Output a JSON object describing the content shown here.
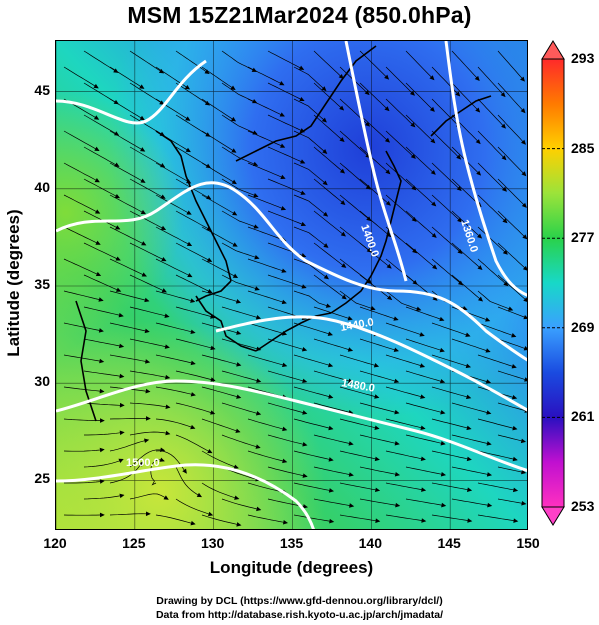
{
  "title": "MSM 15Z21Mar2024 (850.0hPa)",
  "chart_data": {
    "type": "map",
    "xlabel": "Longitude (degrees)",
    "ylabel": "Latitude  (degrees)",
    "xlim": [
      120,
      150
    ],
    "ylim": [
      22.4,
      47.6
    ],
    "xticks": [
      "120",
      "125",
      "130",
      "135",
      "140",
      "145",
      "150"
    ],
    "yticks": [
      "25",
      "30",
      "35",
      "40",
      "45"
    ],
    "field": "temperature (K) shaded with wind streamlines",
    "colorbar": {
      "ticks": [
        "293",
        "285",
        "277",
        "269",
        "261",
        "253"
      ],
      "range": [
        253,
        293
      ],
      "colors": [
        "#ff2a2a",
        "#ff7a00",
        "#ffd000",
        "#9be33a",
        "#2ad24a",
        "#18d8c8",
        "#3aa0ff",
        "#1a4be0",
        "#2a10c0",
        "#c010d0",
        "#ff30c0"
      ]
    },
    "contour_labels": [
      "1400.0",
      "1360.0",
      "1440.0",
      "1480.0",
      "1500.0"
    ]
  },
  "credits": {
    "line1": "Drawing by DCL (https://www.gfd-dennou.org/library/dcl/)",
    "line2": "Data from http://database.rish.kyoto-u.ac.jp/arch/jmadata/"
  }
}
